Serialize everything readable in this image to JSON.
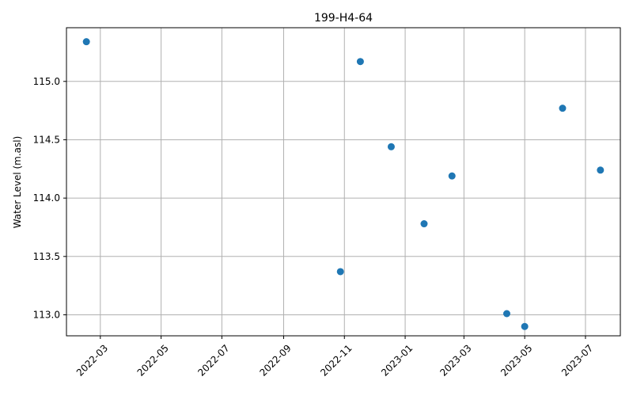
{
  "chart_data": {
    "type": "scatter",
    "title": "199-H4-64",
    "xlabel": "",
    "ylabel": "Water Level (m.asl)",
    "x_type": "date",
    "xlim": [
      "2022-01-26",
      "2023-08-05"
    ],
    "ylim": [
      112.82,
      115.46
    ],
    "x_ticks": [
      "2022-03",
      "2022-05",
      "2022-07",
      "2022-09",
      "2022-11",
      "2023-01",
      "2023-03",
      "2023-05",
      "2023-07"
    ],
    "y_ticks": [
      "113.0",
      "113.5",
      "114.0",
      "114.5",
      "115.0"
    ],
    "grid": true,
    "marker_color": "#1f77b4",
    "points": [
      {
        "x": "2022-02-15",
        "y": 115.34
      },
      {
        "x": "2022-10-28",
        "y": 113.37
      },
      {
        "x": "2022-11-17",
        "y": 115.17
      },
      {
        "x": "2022-12-18",
        "y": 114.44
      },
      {
        "x": "2023-01-20",
        "y": 113.78
      },
      {
        "x": "2023-02-17",
        "y": 114.19
      },
      {
        "x": "2023-04-13",
        "y": 113.01
      },
      {
        "x": "2023-05-01",
        "y": 112.9
      },
      {
        "x": "2023-06-08",
        "y": 114.77
      },
      {
        "x": "2023-07-16",
        "y": 114.24
      }
    ]
  }
}
